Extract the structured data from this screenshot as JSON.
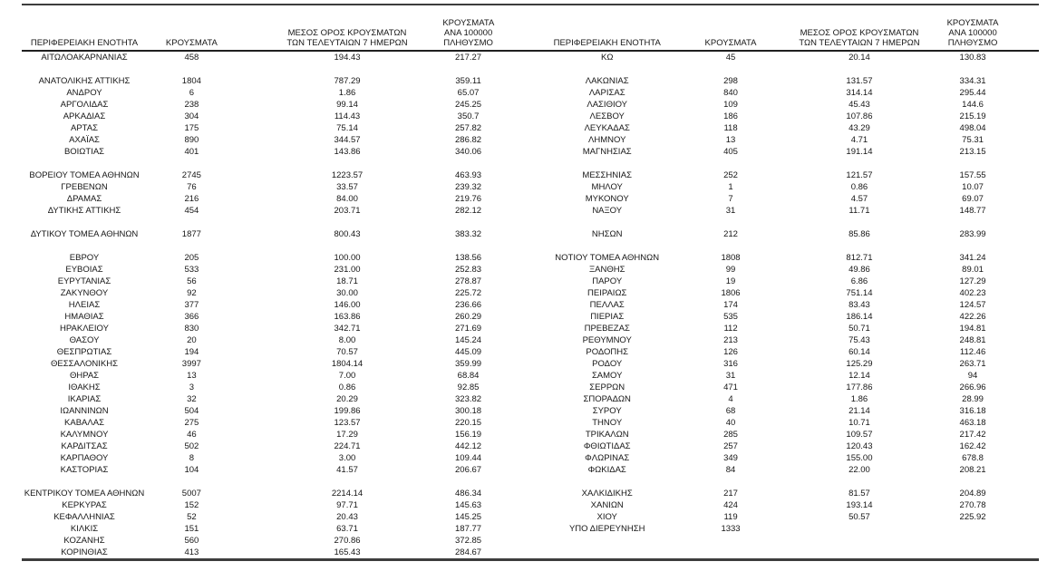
{
  "table": {
    "headers": {
      "region": "ΠΕΡΙΦΕΡΕΙΑΚΗ ΕΝΟΤΗΤΑ",
      "cases": "ΚΡΟΥΣΜΑΤΑ",
      "avg7": "ΜΕΣΟΣ ΟΡΟΣ ΚΡΟΥΣΜΑΤΩΝ\nΤΩΝ ΤΕΛΕΥΤΑΙΩΝ 7 ΗΜΕΡΩΝ",
      "per100k": "ΚΡΟΥΣΜΑΤΑ ΑΝΑ 100000\nΠΛΗΘΥΣΜΟ"
    },
    "rows": [
      {
        "l": [
          "ΑΙΤΩΛΟΑΚΑΡΝΑΝΙΑΣ",
          "458",
          "194.43",
          "217.27"
        ],
        "r": [
          "ΚΩ",
          "45",
          "20.14",
          "130.83"
        ]
      },
      {
        "l": [
          "",
          "",
          "",
          ""
        ],
        "r": [
          "",
          "",
          "",
          ""
        ]
      },
      {
        "l": [
          "ΑΝΑΤΟΛΙΚΗΣ ΑΤΤΙΚΗΣ",
          "1804",
          "787.29",
          "359.11"
        ],
        "r": [
          "ΛΑΚΩΝΙΑΣ",
          "298",
          "131.57",
          "334.31"
        ]
      },
      {
        "l": [
          "ΑΝΔΡΟΥ",
          "6",
          "1.86",
          "65.07"
        ],
        "r": [
          "ΛΑΡΙΣΑΣ",
          "840",
          "314.14",
          "295.44"
        ]
      },
      {
        "l": [
          "ΑΡΓΟΛΙΔΑΣ",
          "238",
          "99.14",
          "245.25"
        ],
        "r": [
          "ΛΑΣΙΘΙΟΥ",
          "109",
          "45.43",
          "144.6"
        ]
      },
      {
        "l": [
          "ΑΡΚΑΔΙΑΣ",
          "304",
          "114.43",
          "350.7"
        ],
        "r": [
          "ΛΕΣΒΟΥ",
          "186",
          "107.86",
          "215.19"
        ]
      },
      {
        "l": [
          "ΑΡΤΑΣ",
          "175",
          "75.14",
          "257.82"
        ],
        "r": [
          "ΛΕΥΚΑΔΑΣ",
          "118",
          "43.29",
          "498.04"
        ]
      },
      {
        "l": [
          "ΑΧΑΪΑΣ",
          "890",
          "344.57",
          "286.82"
        ],
        "r": [
          "ΛΗΜΝΟΥ",
          "13",
          "4.71",
          "75.31"
        ]
      },
      {
        "l": [
          "ΒΟΙΩΤΙΑΣ",
          "401",
          "143.86",
          "340.06"
        ],
        "r": [
          "ΜΑΓΝΗΣΙΑΣ",
          "405",
          "191.14",
          "213.15"
        ]
      },
      {
        "l": [
          "",
          "",
          "",
          ""
        ],
        "r": [
          "",
          "",
          "",
          ""
        ]
      },
      {
        "l": [
          "ΒΟΡΕΙΟΥ ΤΟΜΕΑ ΑΘΗΝΩΝ",
          "2745",
          "1223.57",
          "463.93"
        ],
        "r": [
          "ΜΕΣΣΗΝΙΑΣ",
          "252",
          "121.57",
          "157.55"
        ]
      },
      {
        "l": [
          "ΓΡΕΒΕΝΩΝ",
          "76",
          "33.57",
          "239.32"
        ],
        "r": [
          "ΜΗΛΟΥ",
          "1",
          "0.86",
          "10.07"
        ]
      },
      {
        "l": [
          "ΔΡΑΜΑΣ",
          "216",
          "84.00",
          "219.76"
        ],
        "r": [
          "ΜΥΚΟΝΟΥ",
          "7",
          "4.57",
          "69.07"
        ]
      },
      {
        "l": [
          "ΔΥΤΙΚΗΣ ΑΤΤΙΚΗΣ",
          "454",
          "203.71",
          "282.12"
        ],
        "r": [
          "ΝΑΞΟΥ",
          "31",
          "11.71",
          "148.77"
        ]
      },
      {
        "l": [
          "",
          "",
          "",
          ""
        ],
        "r": [
          "",
          "",
          "",
          ""
        ]
      },
      {
        "l": [
          "ΔΥΤΙΚΟΥ ΤΟΜΕΑ ΑΘΗΝΩΝ",
          "1877",
          "800.43",
          "383.32"
        ],
        "r": [
          "ΝΗΣΩΝ",
          "212",
          "85.86",
          "283.99"
        ]
      },
      {
        "l": [
          "",
          "",
          "",
          ""
        ],
        "r": [
          "",
          "",
          "",
          ""
        ]
      },
      {
        "l": [
          "ΕΒΡΟΥ",
          "205",
          "100.00",
          "138.56"
        ],
        "r": [
          "ΝΟΤΙΟΥ ΤΟΜΕΑ ΑΘΗΝΩΝ",
          "1808",
          "812.71",
          "341.24"
        ]
      },
      {
        "l": [
          "ΕΥΒΟΙΑΣ",
          "533",
          "231.00",
          "252.83"
        ],
        "r": [
          "ΞΑΝΘΗΣ",
          "99",
          "49.86",
          "89.01"
        ]
      },
      {
        "l": [
          "ΕΥΡΥΤΑΝΙΑΣ",
          "56",
          "18.71",
          "278.87"
        ],
        "r": [
          "ΠΑΡΟΥ",
          "19",
          "6.86",
          "127.29"
        ]
      },
      {
        "l": [
          "ΖΑΚΥΝΘΟΥ",
          "92",
          "30.00",
          "225.72"
        ],
        "r": [
          "ΠΕΙΡΑΙΩΣ",
          "1806",
          "751.14",
          "402.23"
        ]
      },
      {
        "l": [
          "ΗΛΕΙΑΣ",
          "377",
          "146.00",
          "236.66"
        ],
        "r": [
          "ΠΕΛΛΑΣ",
          "174",
          "83.43",
          "124.57"
        ]
      },
      {
        "l": [
          "ΗΜΑΘΙΑΣ",
          "366",
          "163.86",
          "260.29"
        ],
        "r": [
          "ΠΙΕΡΙΑΣ",
          "535",
          "186.14",
          "422.26"
        ]
      },
      {
        "l": [
          "ΗΡΑΚΛΕΙΟΥ",
          "830",
          "342.71",
          "271.69"
        ],
        "r": [
          "ΠΡΕΒΕΖΑΣ",
          "112",
          "50.71",
          "194.81"
        ]
      },
      {
        "l": [
          "ΘΑΣΟΥ",
          "20",
          "8.00",
          "145.24"
        ],
        "r": [
          "ΡΕΘΥΜΝΟΥ",
          "213",
          "75.43",
          "248.81"
        ]
      },
      {
        "l": [
          "ΘΕΣΠΡΩΤΙΑΣ",
          "194",
          "70.57",
          "445.09"
        ],
        "r": [
          "ΡΟΔΟΠΗΣ",
          "126",
          "60.14",
          "112.46"
        ]
      },
      {
        "l": [
          "ΘΕΣΣΑΛΟΝΙΚΗΣ",
          "3997",
          "1804.14",
          "359.99"
        ],
        "r": [
          "ΡΟΔΟΥ",
          "316",
          "125.29",
          "263.71"
        ]
      },
      {
        "l": [
          "ΘΗΡΑΣ",
          "13",
          "7.00",
          "68.84"
        ],
        "r": [
          "ΣΑΜΟΥ",
          "31",
          "12.14",
          "94"
        ]
      },
      {
        "l": [
          "ΙΘΑΚΗΣ",
          "3",
          "0.86",
          "92.85"
        ],
        "r": [
          "ΣΕΡΡΩΝ",
          "471",
          "177.86",
          "266.96"
        ]
      },
      {
        "l": [
          "ΙΚΑΡΙΑΣ",
          "32",
          "20.29",
          "323.82"
        ],
        "r": [
          "ΣΠΟΡΑΔΩΝ",
          "4",
          "1.86",
          "28.99"
        ]
      },
      {
        "l": [
          "ΙΩΑΝΝΙΝΩΝ",
          "504",
          "199.86",
          "300.18"
        ],
        "r": [
          "ΣΥΡΟΥ",
          "68",
          "21.14",
          "316.18"
        ]
      },
      {
        "l": [
          "ΚΑΒΑΛΑΣ",
          "275",
          "123.57",
          "220.15"
        ],
        "r": [
          "ΤΗΝΟΥ",
          "40",
          "10.71",
          "463.18"
        ]
      },
      {
        "l": [
          "ΚΑΛΥΜΝΟΥ",
          "46",
          "17.29",
          "156.19"
        ],
        "r": [
          "ΤΡΙΚΑΛΩΝ",
          "285",
          "109.57",
          "217.42"
        ]
      },
      {
        "l": [
          "ΚΑΡΔΙΤΣΑΣ",
          "502",
          "224.71",
          "442.12"
        ],
        "r": [
          "ΦΘΙΩΤΙΔΑΣ",
          "257",
          "120.43",
          "162.42"
        ]
      },
      {
        "l": [
          "ΚΑΡΠΑΘΟΥ",
          "8",
          "3.00",
          "109.44"
        ],
        "r": [
          "ΦΛΩΡΙΝΑΣ",
          "349",
          "155.00",
          "678.8"
        ]
      },
      {
        "l": [
          "ΚΑΣΤΟΡΙΑΣ",
          "104",
          "41.57",
          "206.67"
        ],
        "r": [
          "ΦΩΚΙΔΑΣ",
          "84",
          "22.00",
          "208.21"
        ]
      },
      {
        "l": [
          "",
          "",
          "",
          ""
        ],
        "r": [
          "",
          "",
          "",
          ""
        ]
      },
      {
        "l": [
          "ΚΕΝΤΡΙΚΟΥ ΤΟΜΕΑ ΑΘΗΝΩΝ",
          "5007",
          "2214.14",
          "486.34"
        ],
        "r": [
          "ΧΑΛΚΙΔΙΚΗΣ",
          "217",
          "81.57",
          "204.89"
        ]
      },
      {
        "l": [
          "ΚΕΡΚΥΡΑΣ",
          "152",
          "97.71",
          "145.63"
        ],
        "r": [
          "ΧΑΝΙΩΝ",
          "424",
          "193.14",
          "270.78"
        ]
      },
      {
        "l": [
          "ΚΕΦΑΛΛΗΝΙΑΣ",
          "52",
          "20.43",
          "145.25"
        ],
        "r": [
          "ΧΙΟΥ",
          "119",
          "50.57",
          "225.92"
        ]
      },
      {
        "l": [
          "ΚΙΛΚΙΣ",
          "151",
          "63.71",
          "187.77"
        ],
        "r": [
          "ΥΠΟ ΔΙΕΡΕΥΝΗΣΗ",
          "1333",
          "",
          ""
        ]
      },
      {
        "l": [
          "ΚΟΖΑΝΗΣ",
          "560",
          "270.86",
          "372.85"
        ],
        "r": [
          "",
          "",
          "",
          ""
        ]
      },
      {
        "l": [
          "ΚΟΡΙΝΘΙΑΣ",
          "413",
          "165.43",
          "284.67"
        ],
        "r": [
          "",
          "",
          "",
          ""
        ]
      }
    ]
  },
  "style": {
    "rule_color": "#3d3d3d",
    "text_color": "#161616",
    "background": "#ffffff"
  }
}
